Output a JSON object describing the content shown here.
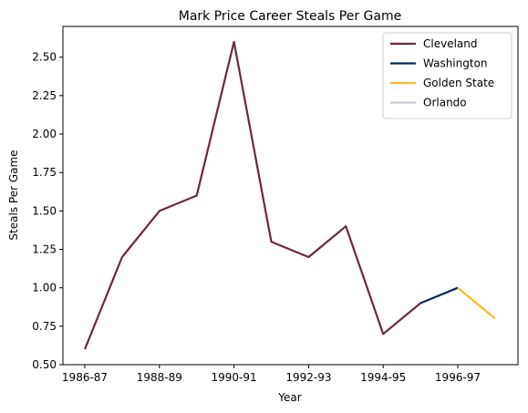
{
  "chart_data": {
    "type": "line",
    "title": "Mark Price Career Steals Per Game",
    "xlabel": "Year",
    "ylabel": "Steals Per Game",
    "x_tick_labels": [
      "1986-87",
      "1988-89",
      "1990-91",
      "1992-93",
      "1994-95",
      "1996-97"
    ],
    "seasons": [
      "1986-87",
      "1987-88",
      "1988-89",
      "1989-90",
      "1990-91",
      "1991-92",
      "1992-93",
      "1993-94",
      "1994-95",
      "1995-96",
      "1996-97",
      "1997-98"
    ],
    "ylim": [
      0.5,
      2.7
    ],
    "y_ticks": [
      0.5,
      0.75,
      1.0,
      1.25,
      1.5,
      1.75,
      2.0,
      2.25,
      2.5
    ],
    "grid": false,
    "legend_position": "top-right",
    "series": [
      {
        "name": "Cleveland",
        "color": "#6F263D",
        "x": [
          "1986-87",
          "1987-88",
          "1988-89",
          "1989-90",
          "1990-91",
          "1991-92",
          "1992-93",
          "1993-94",
          "1994-95",
          "1995-96"
        ],
        "values": [
          0.6,
          1.2,
          1.5,
          1.6,
          2.6,
          1.3,
          1.2,
          1.4,
          0.7,
          0.9
        ]
      },
      {
        "name": "Washington",
        "color": "#002B5C",
        "x": [
          "1995-96",
          "1996-97"
        ],
        "values": [
          0.9,
          1.0
        ]
      },
      {
        "name": "Golden State",
        "color": "#FDB927",
        "x": [
          "1996-97",
          "1997-98"
        ],
        "values": [
          1.0,
          0.8
        ]
      },
      {
        "name": "Orlando",
        "color": "#C4CED4",
        "x": [],
        "values": []
      }
    ]
  }
}
